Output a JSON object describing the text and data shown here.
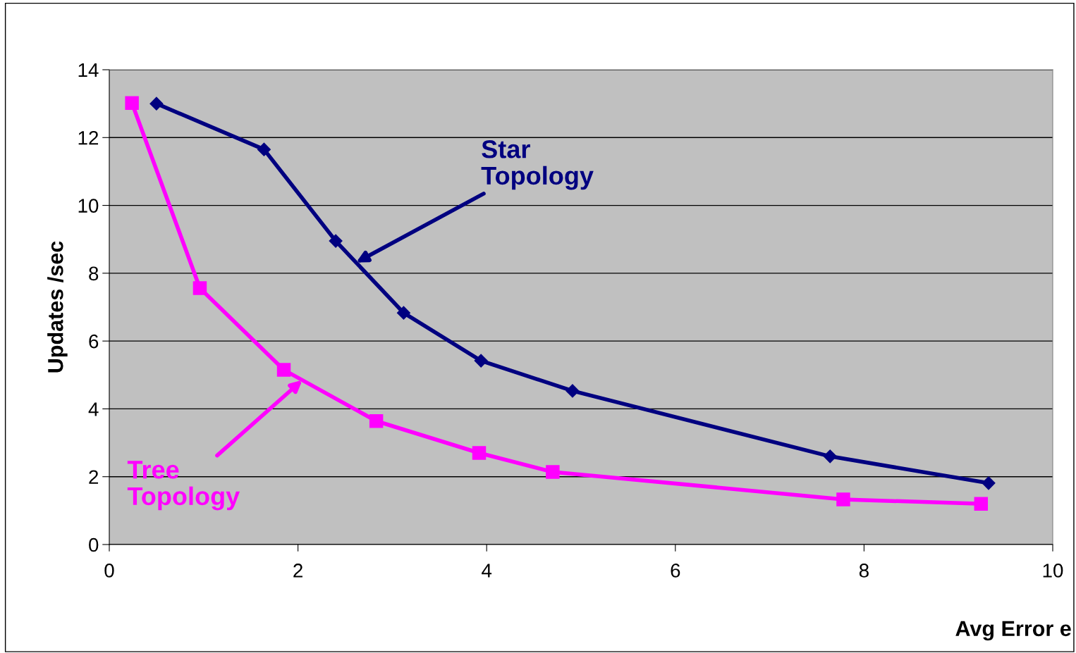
{
  "chart_data": {
    "type": "line",
    "xlabel": "Avg Error e",
    "ylabel": "Updates /sec",
    "xlim": [
      0,
      10
    ],
    "ylim": [
      0,
      14
    ],
    "xticks": [
      0,
      2,
      4,
      6,
      8,
      10
    ],
    "yticks": [
      0,
      2,
      4,
      6,
      8,
      10,
      12,
      14
    ],
    "grid": "y",
    "legend": false,
    "line_style": "solid",
    "series": [
      {
        "name": "Star Topology",
        "color": "#000080",
        "marker": "diamond",
        "x": [
          0.5,
          1.64,
          2.4,
          3.12,
          3.94,
          4.91,
          7.64,
          9.32
        ],
        "values": [
          13.0,
          11.65,
          8.95,
          6.83,
          5.42,
          4.53,
          2.6,
          1.81
        ]
      },
      {
        "name": "Tree Topology",
        "color": "#ff00ff",
        "marker": "square",
        "x": [
          0.24,
          0.96,
          1.85,
          2.83,
          3.92,
          4.7,
          7.78,
          9.24
        ],
        "values": [
          13.02,
          7.56,
          5.15,
          3.64,
          2.7,
          2.14,
          1.33,
          1.2
        ]
      }
    ]
  }
}
